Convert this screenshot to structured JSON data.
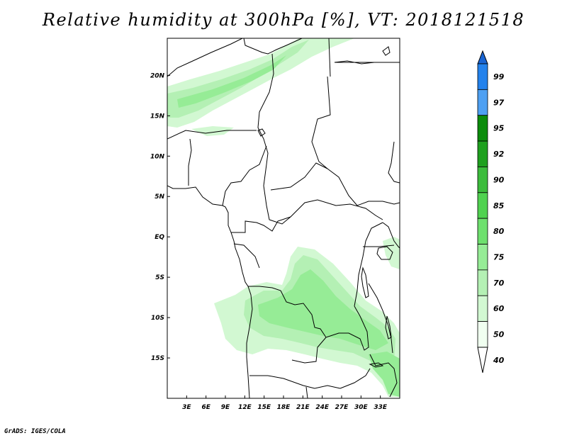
{
  "title": "Relative humidity at 300hPa [%], VT: 2018121518",
  "credit": "GrADS: IGES/COLA",
  "map": {
    "lon_range": [
      0,
      36
    ],
    "lat_range": [
      -20,
      24.6
    ],
    "lat_labels": [
      {
        "text": "20N",
        "lat": 20
      },
      {
        "text": "15N",
        "lat": 15
      },
      {
        "text": "10N",
        "lat": 10
      },
      {
        "text": "5N",
        "lat": 5
      },
      {
        "text": "EQ",
        "lat": 0
      },
      {
        "text": "5S",
        "lat": -5
      },
      {
        "text": "10S",
        "lat": -10
      },
      {
        "text": "15S",
        "lat": -15
      }
    ],
    "lon_labels": [
      {
        "text": "3E",
        "lon": 3
      },
      {
        "text": "6E",
        "lon": 6
      },
      {
        "text": "9E",
        "lon": 9
      },
      {
        "text": "12E",
        "lon": 12
      },
      {
        "text": "15E",
        "lon": 15
      },
      {
        "text": "18E",
        "lon": 18
      },
      {
        "text": "21E",
        "lon": 21
      },
      {
        "text": "24E",
        "lon": 24
      },
      {
        "text": "27E",
        "lon": 27
      },
      {
        "text": "30E",
        "lon": 30
      },
      {
        "text": "33E",
        "lon": 33
      }
    ]
  },
  "legend": {
    "labels": [
      "99",
      "97",
      "95",
      "92",
      "90",
      "85",
      "80",
      "75",
      "70",
      "60",
      "50",
      "40"
    ],
    "colors": [
      "#1964d2",
      "#2382ec",
      "#4ea0f2",
      "#0b8c0b",
      "#1ea01e",
      "#3cbc3c",
      "#50d250",
      "#6ee06e",
      "#96ec96",
      "#b4f0b4",
      "#d2f8d2",
      "#f0fff0"
    ]
  }
}
